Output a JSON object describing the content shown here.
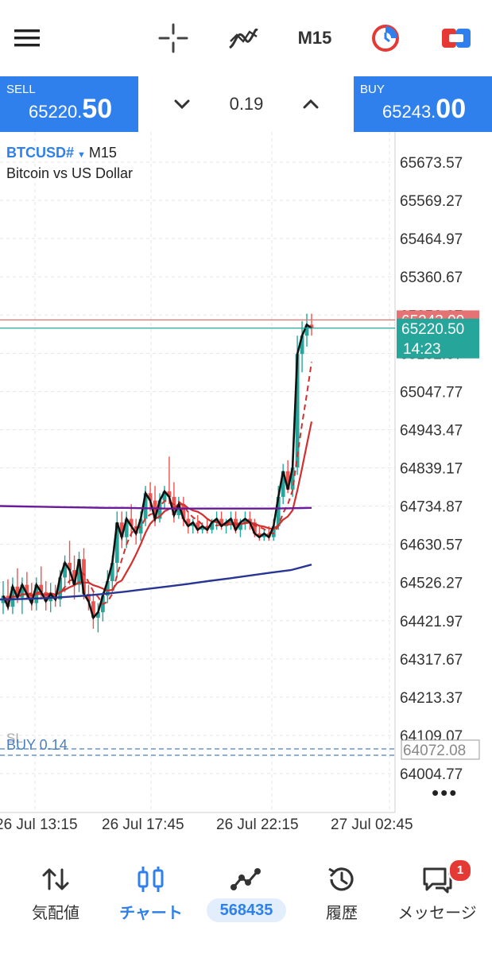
{
  "toolbar": {
    "timeframe": "M15",
    "icons": [
      "menu-icon",
      "crosshair-icon",
      "indicators-icon",
      "timeframe",
      "one-click-trading-icon",
      "trade-icon"
    ]
  },
  "trade_panel": {
    "sell_label": "SELL",
    "sell_price_small": "65220.",
    "sell_price_big": "50",
    "lot": "0.19",
    "buy_label": "BUY",
    "buy_price_small": "65243.",
    "buy_price_big": "00"
  },
  "chart": {
    "symbol": "BTCUSD#",
    "timeframe": "M15",
    "description": "Bitcoin vs US Dollar",
    "price_axis": [
      "65673.57",
      "65569.27",
      "65464.97",
      "65360.67",
      "65256.37",
      "65152.07",
      "65047.77",
      "64943.47",
      "64839.17",
      "64734.87",
      "64630.57",
      "64526.27",
      "64421.97",
      "64317.67",
      "64213.37",
      "64109.07",
      "64004.77"
    ],
    "time_axis": [
      "26 Jul 13:15",
      "26 Jul 17:45",
      "26 Jul 22:15",
      "27 Jul 02:45"
    ],
    "ask_tag": "65243.00",
    "bid_tag": "65220.50",
    "countdown": "14:23",
    "position_label": "BUY 0.14",
    "sl_label": "SL",
    "position_tag": "64072.08",
    "colors": {
      "bull": "#26a69a",
      "bear": "#ef5350",
      "ask_line": "#e57373",
      "bid_line": "#26a69a",
      "ma_red": "#d32f2f",
      "ma_purple": "#6a1b9a",
      "ma_navy": "#283593",
      "accent": "#2f80ed"
    }
  },
  "chart_data": {
    "type": "candlestick",
    "symbol": "BTCUSD#",
    "timeframe": "M15",
    "ylim": [
      63980,
      65720
    ],
    "x_labels": [
      "26 Jul 13:15",
      "26 Jul 17:45",
      "26 Jul 22:15",
      "27 Jul 02:45"
    ],
    "candles": [
      {
        "o": 64470,
        "h": 64530,
        "l": 64440,
        "c": 64490
      },
      {
        "o": 64490,
        "h": 64535,
        "l": 64450,
        "c": 64460
      },
      {
        "o": 64460,
        "h": 64540,
        "l": 64440,
        "c": 64515
      },
      {
        "o": 64515,
        "h": 64565,
        "l": 64470,
        "c": 64485
      },
      {
        "o": 64485,
        "h": 64540,
        "l": 64440,
        "c": 64520
      },
      {
        "o": 64520,
        "h": 64555,
        "l": 64480,
        "c": 64495
      },
      {
        "o": 64495,
        "h": 64525,
        "l": 64450,
        "c": 64470
      },
      {
        "o": 64470,
        "h": 64540,
        "l": 64450,
        "c": 64520
      },
      {
        "o": 64520,
        "h": 64570,
        "l": 64480,
        "c": 64500
      },
      {
        "o": 64500,
        "h": 64530,
        "l": 64450,
        "c": 64475
      },
      {
        "o": 64475,
        "h": 64525,
        "l": 64445,
        "c": 64495
      },
      {
        "o": 64495,
        "h": 64520,
        "l": 64460,
        "c": 64480
      },
      {
        "o": 64480,
        "h": 64560,
        "l": 64460,
        "c": 64540
      },
      {
        "o": 64540,
        "h": 64600,
        "l": 64500,
        "c": 64580
      },
      {
        "o": 64580,
        "h": 64640,
        "l": 64520,
        "c": 64560
      },
      {
        "o": 64560,
        "h": 64600,
        "l": 64480,
        "c": 64520
      },
      {
        "o": 64520,
        "h": 64610,
        "l": 64500,
        "c": 64590
      },
      {
        "o": 64590,
        "h": 64620,
        "l": 64480,
        "c": 64495
      },
      {
        "o": 64495,
        "h": 64520,
        "l": 64450,
        "c": 64475
      },
      {
        "o": 64475,
        "h": 64500,
        "l": 64400,
        "c": 64430
      },
      {
        "o": 64430,
        "h": 64470,
        "l": 64390,
        "c": 64445
      },
      {
        "o": 64445,
        "h": 64500,
        "l": 64420,
        "c": 64490
      },
      {
        "o": 64490,
        "h": 64560,
        "l": 64470,
        "c": 64530
      },
      {
        "o": 64530,
        "h": 64600,
        "l": 64500,
        "c": 64580
      },
      {
        "o": 64580,
        "h": 64720,
        "l": 64540,
        "c": 64690
      },
      {
        "o": 64690,
        "h": 64720,
        "l": 64620,
        "c": 64650
      },
      {
        "o": 64650,
        "h": 64720,
        "l": 64620,
        "c": 64700
      },
      {
        "o": 64700,
        "h": 64740,
        "l": 64650,
        "c": 64680
      },
      {
        "o": 64680,
        "h": 64700,
        "l": 64630,
        "c": 64660
      },
      {
        "o": 64660,
        "h": 64720,
        "l": 64640,
        "c": 64700
      },
      {
        "o": 64700,
        "h": 64790,
        "l": 64680,
        "c": 64770
      },
      {
        "o": 64770,
        "h": 64800,
        "l": 64720,
        "c": 64750
      },
      {
        "o": 64750,
        "h": 64790,
        "l": 64680,
        "c": 64700
      },
      {
        "o": 64700,
        "h": 64770,
        "l": 64690,
        "c": 64750
      },
      {
        "o": 64750,
        "h": 64790,
        "l": 64730,
        "c": 64775
      },
      {
        "o": 64775,
        "h": 64870,
        "l": 64740,
        "c": 64760
      },
      {
        "o": 64760,
        "h": 64800,
        "l": 64690,
        "c": 64710
      },
      {
        "o": 64710,
        "h": 64760,
        "l": 64700,
        "c": 64740
      },
      {
        "o": 64740,
        "h": 64760,
        "l": 64680,
        "c": 64700
      },
      {
        "o": 64700,
        "h": 64720,
        "l": 64660,
        "c": 64680
      },
      {
        "o": 64680,
        "h": 64700,
        "l": 64660,
        "c": 64690
      },
      {
        "o": 64690,
        "h": 64710,
        "l": 64660,
        "c": 64670
      },
      {
        "o": 64670,
        "h": 64690,
        "l": 64660,
        "c": 64680
      },
      {
        "o": 64680,
        "h": 64700,
        "l": 64660,
        "c": 64670
      },
      {
        "o": 64670,
        "h": 64700,
        "l": 64660,
        "c": 64690
      },
      {
        "o": 64690,
        "h": 64720,
        "l": 64670,
        "c": 64700
      },
      {
        "o": 64700,
        "h": 64720,
        "l": 64670,
        "c": 64680
      },
      {
        "o": 64680,
        "h": 64700,
        "l": 64660,
        "c": 64690
      },
      {
        "o": 64690,
        "h": 64720,
        "l": 64670,
        "c": 64700
      },
      {
        "o": 64700,
        "h": 64720,
        "l": 64660,
        "c": 64670
      },
      {
        "o": 64670,
        "h": 64700,
        "l": 64650,
        "c": 64690
      },
      {
        "o": 64690,
        "h": 64720,
        "l": 64670,
        "c": 64700
      },
      {
        "o": 64700,
        "h": 64720,
        "l": 64670,
        "c": 64690
      },
      {
        "o": 64690,
        "h": 64700,
        "l": 64650,
        "c": 64660
      },
      {
        "o": 64660,
        "h": 64680,
        "l": 64640,
        "c": 64650
      },
      {
        "o": 64650,
        "h": 64670,
        "l": 64640,
        "c": 64660
      },
      {
        "o": 64660,
        "h": 64680,
        "l": 64640,
        "c": 64650
      },
      {
        "o": 64650,
        "h": 64700,
        "l": 64640,
        "c": 64680
      },
      {
        "o": 64680,
        "h": 64790,
        "l": 64670,
        "c": 64760
      },
      {
        "o": 64760,
        "h": 64850,
        "l": 64740,
        "c": 64830
      },
      {
        "o": 64830,
        "h": 64860,
        "l": 64770,
        "c": 64780
      },
      {
        "o": 64780,
        "h": 64860,
        "l": 64760,
        "c": 64840
      },
      {
        "o": 64840,
        "h": 65200,
        "l": 64820,
        "c": 65150
      },
      {
        "o": 65150,
        "h": 65240,
        "l": 65100,
        "c": 65200
      },
      {
        "o": 65200,
        "h": 65260,
        "l": 65170,
        "c": 65230
      },
      {
        "o": 65230,
        "h": 65260,
        "l": 65200,
        "c": 65220
      }
    ],
    "bid": 65220.5,
    "ask": 65243.0,
    "position": {
      "side": "BUY",
      "volume": 0.14,
      "price": 64072.08
    },
    "ma_purple": [
      64735,
      64734,
      64733,
      64732,
      64731,
      64730,
      64730,
      64729,
      64728,
      64728,
      64728,
      64728,
      64728,
      64728,
      64729,
      64730
    ],
    "ma_navy": [
      64480,
      64481,
      64483,
      64486,
      64490,
      64495,
      64501,
      64508,
      64515,
      64522,
      64530,
      64537,
      64545,
      64553,
      64560,
      64575
    ]
  }
}
